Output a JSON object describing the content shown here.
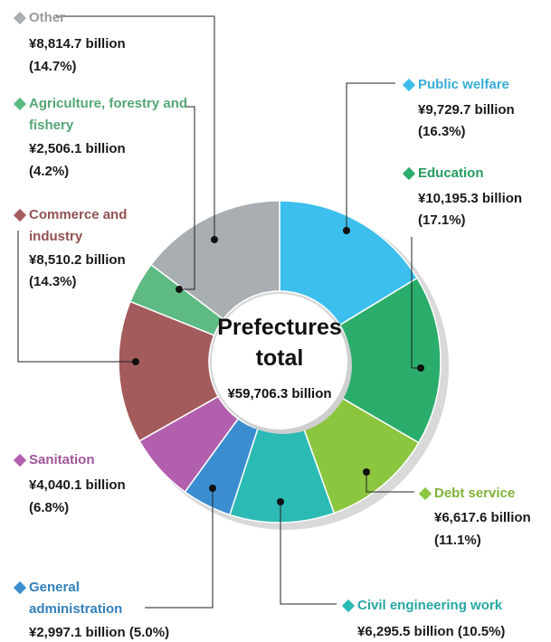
{
  "chart_data": {
    "type": "pie",
    "center_title": [
      "Prefectures",
      "total"
    ],
    "total": 59706.3,
    "total_label": "¥59,706.3 billion",
    "categories": [
      "Public welfare",
      "Education",
      "Debt service",
      "Civil engineering work",
      "General administration",
      "Sanitation",
      "Commerce and industry",
      "Agriculture, forestry and fishery",
      "Other"
    ],
    "values": [
      16.3,
      17.1,
      11.1,
      10.5,
      5.0,
      6.8,
      14.3,
      4.2,
      14.7
    ],
    "value_labels": [
      "(16.3%)",
      "(17.1%)",
      "(11.1%)",
      "(10.5%)",
      "(5.0%)",
      "(6.8%)",
      "(14.3%)",
      "(4.2%)",
      "(14.7%)"
    ],
    "amounts": [
      9729.7,
      10195.3,
      6617.6,
      6295.5,
      2997.1,
      4040.1,
      8510.2,
      2506.1,
      8814.7
    ],
    "amount_labels": [
      "¥9,729.7 billion",
      "¥10,195.3 billion",
      "¥6,617.6 billion",
      "¥6,295.5 billion",
      "¥2,997.1 billion",
      "¥4,040.1 billion",
      "¥8,510.2 billion",
      "¥2,506.1 billion",
      "¥8,814.7 billion"
    ],
    "colors": [
      "#3dbfee",
      "#2aac6a",
      "#8cc63f",
      "#2bbab4",
      "#3a8ed0",
      "#b25fae",
      "#a35b5b",
      "#5dba83",
      "#a9aeb3"
    ]
  }
}
